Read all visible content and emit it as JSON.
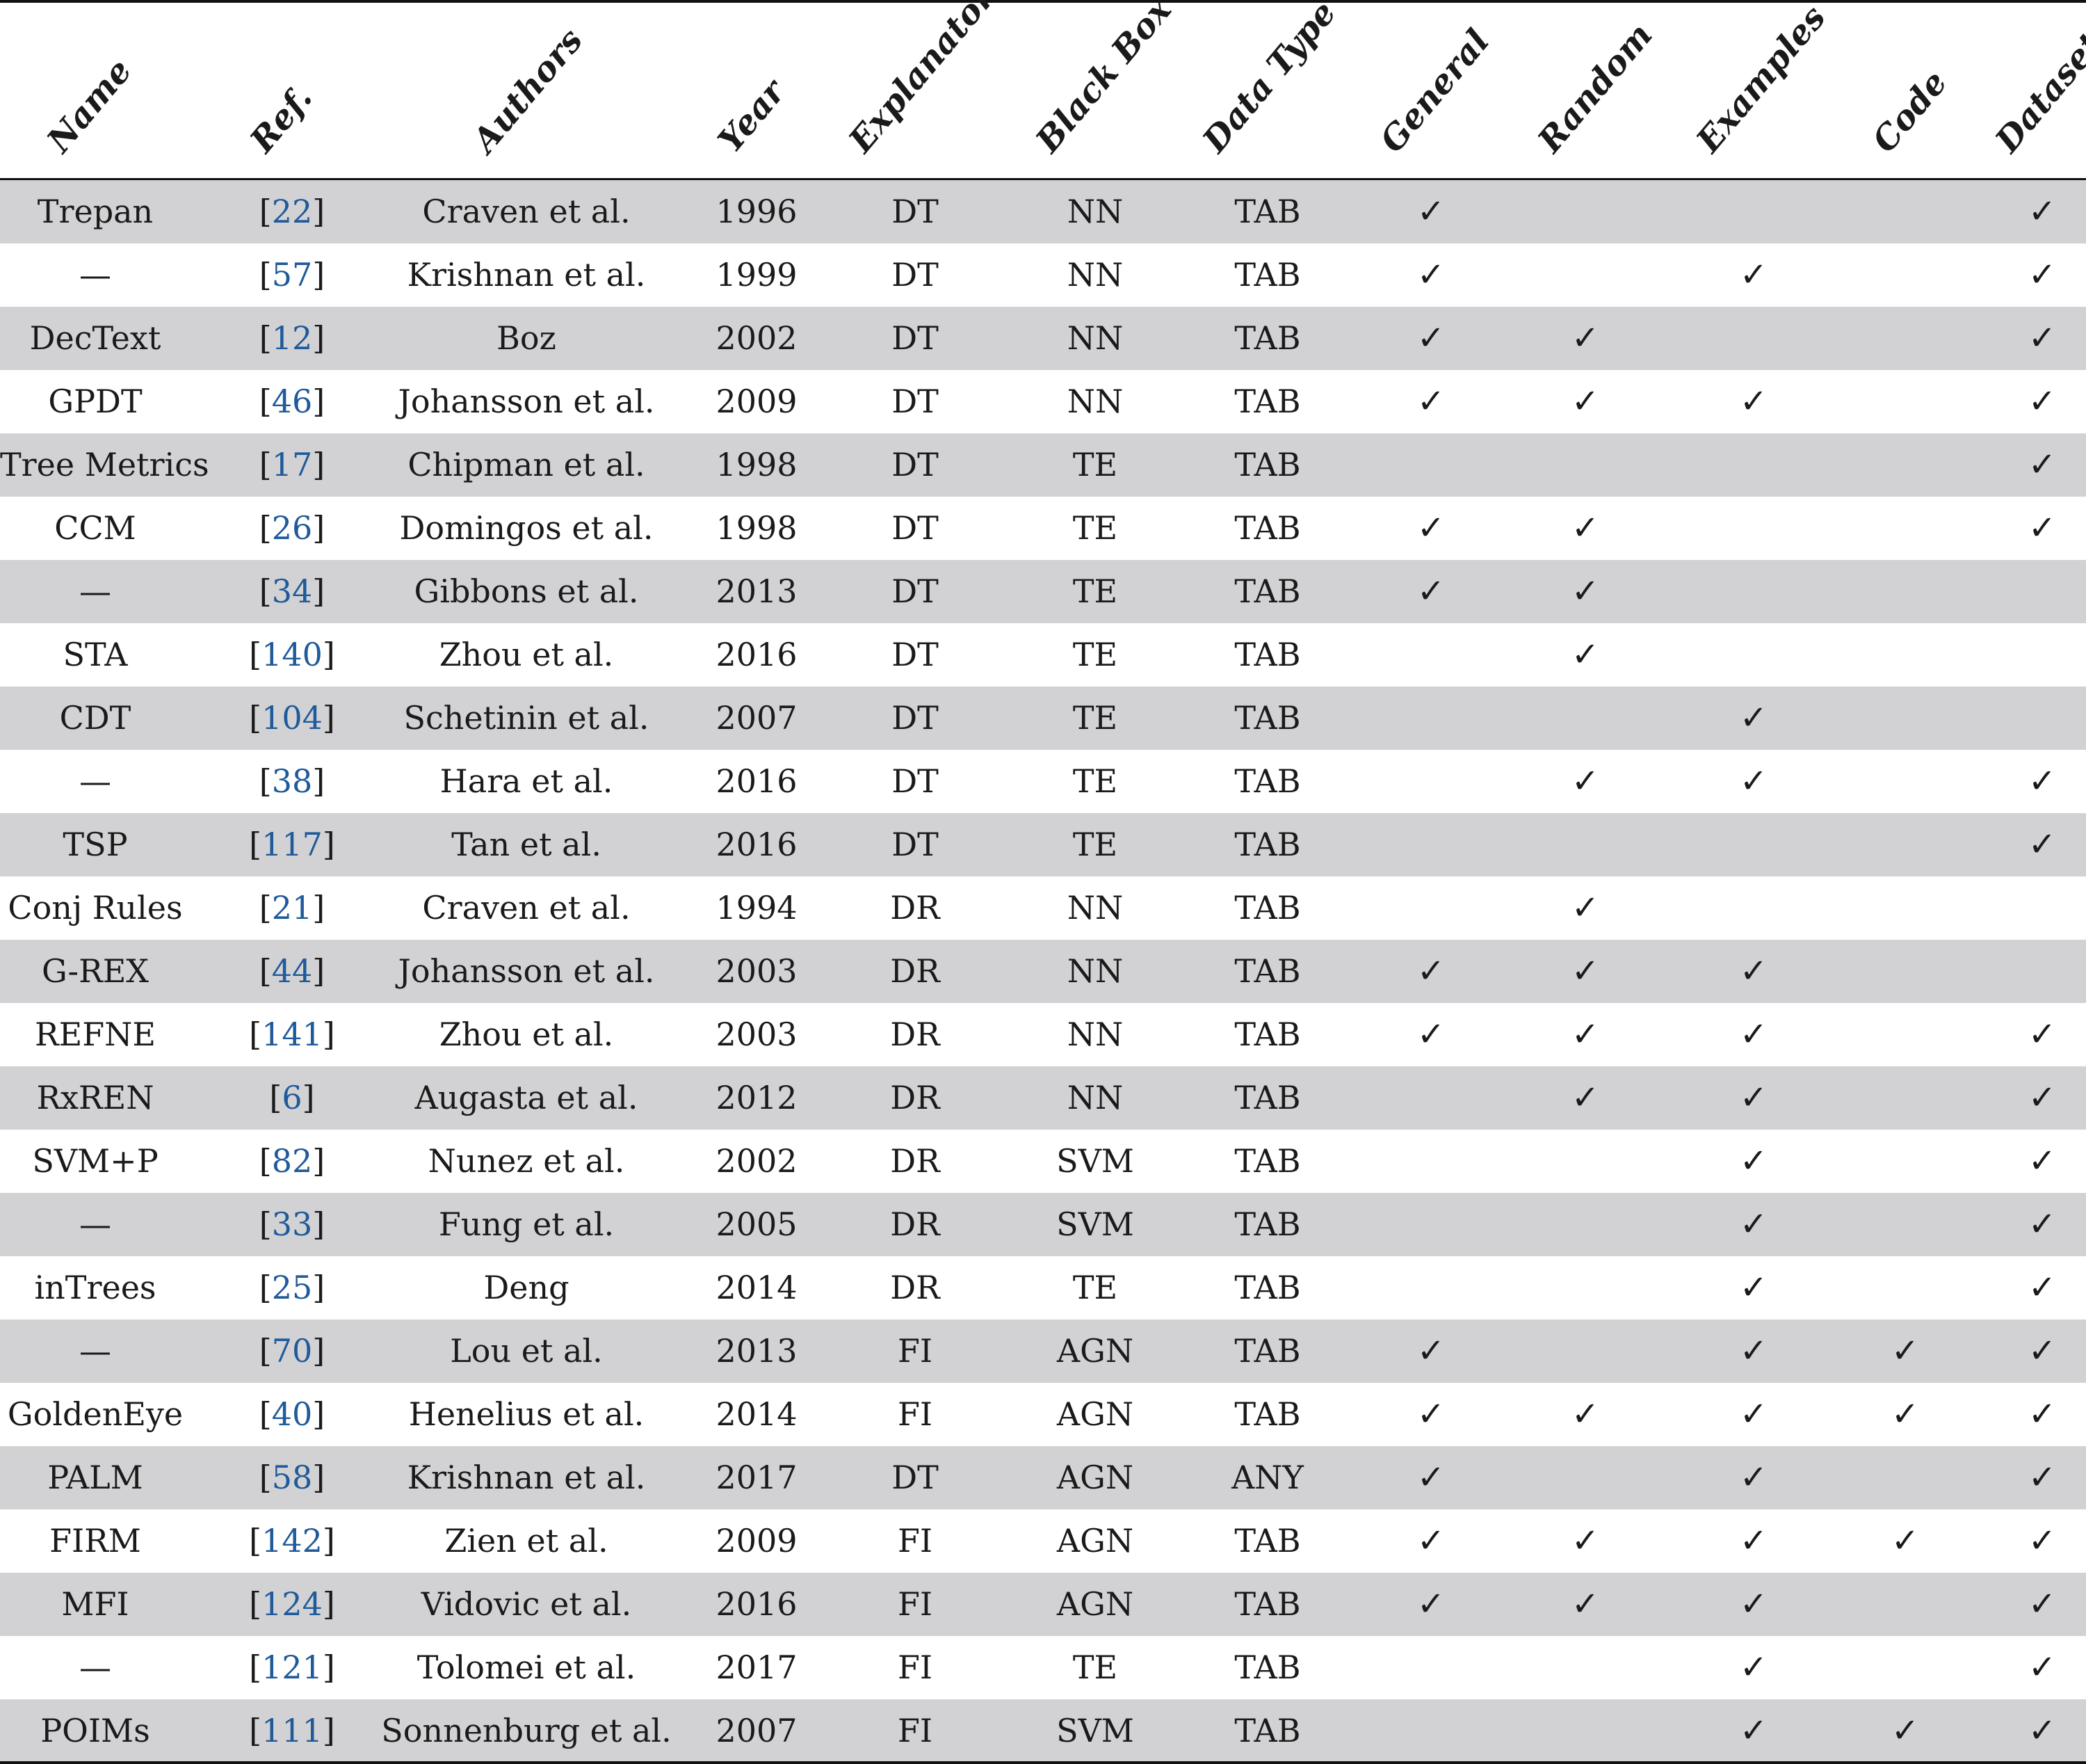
{
  "table": {
    "headers": [
      "Name",
      "Ref.",
      "Authors",
      "Year",
      "Explanator",
      "Black Box",
      "Data Type",
      "General",
      "Random",
      "Examples",
      "Code",
      "Dataset"
    ],
    "check_mark": "✓",
    "link_color": "#1f5a9a",
    "shade_color": "#d2d2d4",
    "rows": [
      {
        "name": "Trepan",
        "ref": "22",
        "authors": "Craven et al.",
        "year": "1996",
        "explanator": "DT",
        "black_box": "NN",
        "data_type": "TAB",
        "general": true,
        "random": false,
        "examples": false,
        "code": false,
        "dataset": true
      },
      {
        "name": "—",
        "ref": "57",
        "authors": "Krishnan et al.",
        "year": "1999",
        "explanator": "DT",
        "black_box": "NN",
        "data_type": "TAB",
        "general": true,
        "random": false,
        "examples": true,
        "code": false,
        "dataset": true
      },
      {
        "name": "DecText",
        "ref": "12",
        "authors": "Boz",
        "year": "2002",
        "explanator": "DT",
        "black_box": "NN",
        "data_type": "TAB",
        "general": true,
        "random": true,
        "examples": false,
        "code": false,
        "dataset": true
      },
      {
        "name": "GPDT",
        "ref": "46",
        "authors": "Johansson et al.",
        "year": "2009",
        "explanator": "DT",
        "black_box": "NN",
        "data_type": "TAB",
        "general": true,
        "random": true,
        "examples": true,
        "code": false,
        "dataset": true
      },
      {
        "name": "Tree Metrics",
        "ref": "17",
        "authors": "Chipman et al.",
        "year": "1998",
        "explanator": "DT",
        "black_box": "TE",
        "data_type": "TAB",
        "general": false,
        "random": false,
        "examples": false,
        "code": false,
        "dataset": true
      },
      {
        "name": "CCM",
        "ref": "26",
        "authors": "Domingos et al.",
        "year": "1998",
        "explanator": "DT",
        "black_box": "TE",
        "data_type": "TAB",
        "general": true,
        "random": true,
        "examples": false,
        "code": false,
        "dataset": true
      },
      {
        "name": "—",
        "ref": "34",
        "authors": "Gibbons et al.",
        "year": "2013",
        "explanator": "DT",
        "black_box": "TE",
        "data_type": "TAB",
        "general": true,
        "random": true,
        "examples": false,
        "code": false,
        "dataset": false
      },
      {
        "name": "STA",
        "ref": "140",
        "authors": "Zhou et al.",
        "year": "2016",
        "explanator": "DT",
        "black_box": "TE",
        "data_type": "TAB",
        "general": false,
        "random": true,
        "examples": false,
        "code": false,
        "dataset": false
      },
      {
        "name": "CDT",
        "ref": "104",
        "authors": "Schetinin et al.",
        "year": "2007",
        "explanator": "DT",
        "black_box": "TE",
        "data_type": "TAB",
        "general": false,
        "random": false,
        "examples": true,
        "code": false,
        "dataset": false
      },
      {
        "name": "—",
        "ref": "38",
        "authors": "Hara et al.",
        "year": "2016",
        "explanator": "DT",
        "black_box": "TE",
        "data_type": "TAB",
        "general": false,
        "random": true,
        "examples": true,
        "code": false,
        "dataset": true
      },
      {
        "name": "TSP",
        "ref": "117",
        "authors": "Tan et al.",
        "year": "2016",
        "explanator": "DT",
        "black_box": "TE",
        "data_type": "TAB",
        "general": false,
        "random": false,
        "examples": false,
        "code": false,
        "dataset": true
      },
      {
        "name": "Conj Rules",
        "ref": "21",
        "authors": "Craven et al.",
        "year": "1994",
        "explanator": "DR",
        "black_box": "NN",
        "data_type": "TAB",
        "general": false,
        "random": true,
        "examples": false,
        "code": false,
        "dataset": false
      },
      {
        "name": "G-REX",
        "ref": "44",
        "authors": "Johansson et al.",
        "year": "2003",
        "explanator": "DR",
        "black_box": "NN",
        "data_type": "TAB",
        "general": true,
        "random": true,
        "examples": true,
        "code": false,
        "dataset": false
      },
      {
        "name": "REFNE",
        "ref": "141",
        "authors": "Zhou et al.",
        "year": "2003",
        "explanator": "DR",
        "black_box": "NN",
        "data_type": "TAB",
        "general": true,
        "random": true,
        "examples": true,
        "code": false,
        "dataset": true
      },
      {
        "name": "RxREN",
        "ref": "6",
        "authors": "Augasta et al.",
        "year": "2012",
        "explanator": "DR",
        "black_box": "NN",
        "data_type": "TAB",
        "general": false,
        "random": true,
        "examples": true,
        "code": false,
        "dataset": true
      },
      {
        "name": "SVM+P",
        "ref": "82",
        "authors": "Nunez et al.",
        "year": "2002",
        "explanator": "DR",
        "black_box": "SVM",
        "data_type": "TAB",
        "general": false,
        "random": false,
        "examples": true,
        "code": false,
        "dataset": true
      },
      {
        "name": "—",
        "ref": "33",
        "authors": "Fung et al.",
        "year": "2005",
        "explanator": "DR",
        "black_box": "SVM",
        "data_type": "TAB",
        "general": false,
        "random": false,
        "examples": true,
        "code": false,
        "dataset": true
      },
      {
        "name": "inTrees",
        "ref": "25",
        "authors": "Deng",
        "year": "2014",
        "explanator": "DR",
        "black_box": "TE",
        "data_type": "TAB",
        "general": false,
        "random": false,
        "examples": true,
        "code": false,
        "dataset": true
      },
      {
        "name": "—",
        "ref": "70",
        "authors": "Lou et al.",
        "year": "2013",
        "explanator": "FI",
        "black_box": "AGN",
        "data_type": "TAB",
        "general": true,
        "random": false,
        "examples": true,
        "code": true,
        "dataset": true
      },
      {
        "name": "GoldenEye",
        "ref": "40",
        "authors": "Henelius et al.",
        "year": "2014",
        "explanator": "FI",
        "black_box": "AGN",
        "data_type": "TAB",
        "general": true,
        "random": true,
        "examples": true,
        "code": true,
        "dataset": true
      },
      {
        "name": "PALM",
        "ref": "58",
        "authors": "Krishnan et al.",
        "year": "2017",
        "explanator": "DT",
        "black_box": "AGN",
        "data_type": "ANY",
        "general": true,
        "random": false,
        "examples": true,
        "code": false,
        "dataset": true
      },
      {
        "name": "FIRM",
        "ref": "142",
        "authors": "Zien et al.",
        "year": "2009",
        "explanator": "FI",
        "black_box": "AGN",
        "data_type": "TAB",
        "general": true,
        "random": true,
        "examples": true,
        "code": true,
        "dataset": true
      },
      {
        "name": "MFI",
        "ref": "124",
        "authors": "Vidovic et al.",
        "year": "2016",
        "explanator": "FI",
        "black_box": "AGN",
        "data_type": "TAB",
        "general": true,
        "random": true,
        "examples": true,
        "code": false,
        "dataset": true
      },
      {
        "name": "—",
        "ref": "121",
        "authors": "Tolomei et al.",
        "year": "2017",
        "explanator": "FI",
        "black_box": "TE",
        "data_type": "TAB",
        "general": false,
        "random": false,
        "examples": true,
        "code": false,
        "dataset": true
      },
      {
        "name": "POIMs",
        "ref": "111",
        "authors": "Sonnenburg et al.",
        "year": "2007",
        "explanator": "FI",
        "black_box": "SVM",
        "data_type": "TAB",
        "general": false,
        "random": false,
        "examples": true,
        "code": true,
        "dataset": true
      }
    ]
  }
}
